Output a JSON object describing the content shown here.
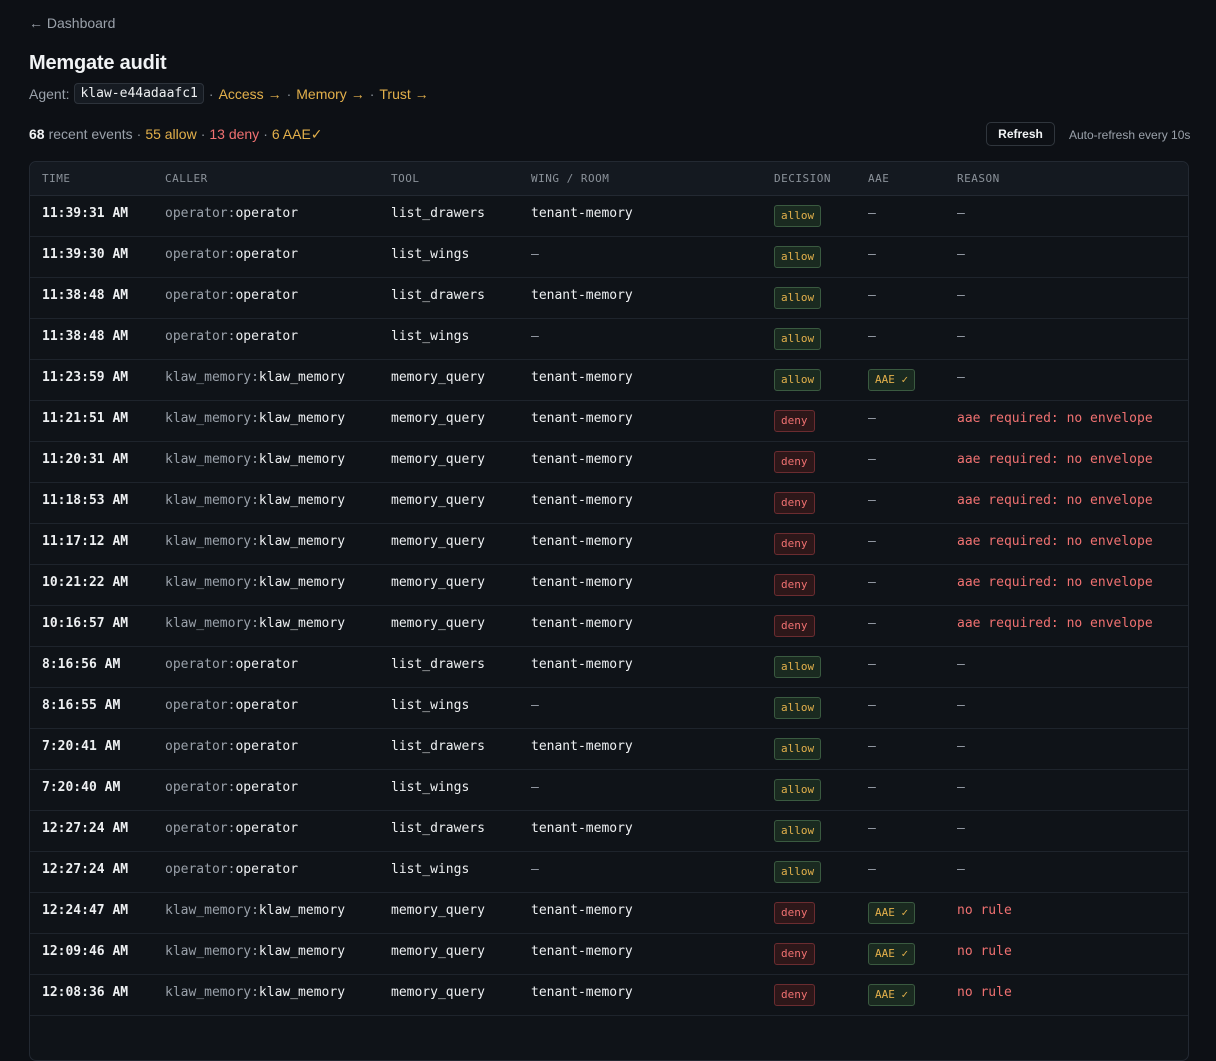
{
  "nav": {
    "back": "← Dashboard"
  },
  "header": {
    "title": "Memgate audit",
    "agent_label": "Agent:",
    "agent_id": "klaw-e44adaafc1",
    "separator": "·",
    "links": [
      "Access →",
      "Memory →",
      "Trust →"
    ]
  },
  "summary": {
    "count": 68,
    "count_text": "recent events",
    "allow": "55 allow",
    "deny": "13 deny",
    "aae": "6 AAE✓"
  },
  "controls": {
    "refresh": "Refresh",
    "auto_refresh": "Auto-refresh every 10s"
  },
  "table": {
    "columns": [
      "TIME",
      "CALLER",
      "TOOL",
      "WING / ROOM",
      "DECISION",
      "AAE",
      "REASON"
    ],
    "rows": [
      {
        "time": "11:39:31 AM",
        "caller_prefix": "operator:",
        "caller": "operator",
        "tool": "list_drawers",
        "wing": "tenant-memory",
        "decision": "allow",
        "aae": "—",
        "reason": "—"
      },
      {
        "time": "11:39:30 AM",
        "caller_prefix": "operator:",
        "caller": "operator",
        "tool": "list_wings",
        "wing": "—",
        "decision": "allow",
        "aae": "—",
        "reason": "—"
      },
      {
        "time": "11:38:48 AM",
        "caller_prefix": "operator:",
        "caller": "operator",
        "tool": "list_drawers",
        "wing": "tenant-memory",
        "decision": "allow",
        "aae": "—",
        "reason": "—"
      },
      {
        "time": "11:38:48 AM",
        "caller_prefix": "operator:",
        "caller": "operator",
        "tool": "list_wings",
        "wing": "—",
        "decision": "allow",
        "aae": "—",
        "reason": "—"
      },
      {
        "time": "11:23:59 AM",
        "caller_prefix": "klaw_memory:",
        "caller": "klaw_memory",
        "tool": "memory_query",
        "wing": "tenant-memory",
        "decision": "allow",
        "aae": "AAE ✓",
        "reason": "—"
      },
      {
        "time": "11:21:51 AM",
        "caller_prefix": "klaw_memory:",
        "caller": "klaw_memory",
        "tool": "memory_query",
        "wing": "tenant-memory",
        "decision": "deny",
        "aae": "—",
        "reason": "aae required: no envelope"
      },
      {
        "time": "11:20:31 AM",
        "caller_prefix": "klaw_memory:",
        "caller": "klaw_memory",
        "tool": "memory_query",
        "wing": "tenant-memory",
        "decision": "deny",
        "aae": "—",
        "reason": "aae required: no envelope"
      },
      {
        "time": "11:18:53 AM",
        "caller_prefix": "klaw_memory:",
        "caller": "klaw_memory",
        "tool": "memory_query",
        "wing": "tenant-memory",
        "decision": "deny",
        "aae": "—",
        "reason": "aae required: no envelope"
      },
      {
        "time": "11:17:12 AM",
        "caller_prefix": "klaw_memory:",
        "caller": "klaw_memory",
        "tool": "memory_query",
        "wing": "tenant-memory",
        "decision": "deny",
        "aae": "—",
        "reason": "aae required: no envelope"
      },
      {
        "time": "10:21:22 AM",
        "caller_prefix": "klaw_memory:",
        "caller": "klaw_memory",
        "tool": "memory_query",
        "wing": "tenant-memory",
        "decision": "deny",
        "aae": "—",
        "reason": "aae required: no envelope"
      },
      {
        "time": "10:16:57 AM",
        "caller_prefix": "klaw_memory:",
        "caller": "klaw_memory",
        "tool": "memory_query",
        "wing": "tenant-memory",
        "decision": "deny",
        "aae": "—",
        "reason": "aae required: no envelope"
      },
      {
        "time": "8:16:56 AM",
        "caller_prefix": "operator:",
        "caller": "operator",
        "tool": "list_drawers",
        "wing": "tenant-memory",
        "decision": "allow",
        "aae": "—",
        "reason": "—"
      },
      {
        "time": "8:16:55 AM",
        "caller_prefix": "operator:",
        "caller": "operator",
        "tool": "list_wings",
        "wing": "—",
        "decision": "allow",
        "aae": "—",
        "reason": "—"
      },
      {
        "time": "7:20:41 AM",
        "caller_prefix": "operator:",
        "caller": "operator",
        "tool": "list_drawers",
        "wing": "tenant-memory",
        "decision": "allow",
        "aae": "—",
        "reason": "—"
      },
      {
        "time": "7:20:40 AM",
        "caller_prefix": "operator:",
        "caller": "operator",
        "tool": "list_wings",
        "wing": "—",
        "decision": "allow",
        "aae": "—",
        "reason": "—"
      },
      {
        "time": "12:27:24 AM",
        "caller_prefix": "operator:",
        "caller": "operator",
        "tool": "list_drawers",
        "wing": "tenant-memory",
        "decision": "allow",
        "aae": "—",
        "reason": "—"
      },
      {
        "time": "12:27:24 AM",
        "caller_prefix": "operator:",
        "caller": "operator",
        "tool": "list_wings",
        "wing": "—",
        "decision": "allow",
        "aae": "—",
        "reason": "—"
      },
      {
        "time": "12:24:47 AM",
        "caller_prefix": "klaw_memory:",
        "caller": "klaw_memory",
        "tool": "memory_query",
        "wing": "tenant-memory",
        "decision": "deny",
        "aae": "AAE ✓",
        "reason": "no rule"
      },
      {
        "time": "12:09:46 AM",
        "caller_prefix": "klaw_memory:",
        "caller": "klaw_memory",
        "tool": "memory_query",
        "wing": "tenant-memory",
        "decision": "deny",
        "aae": "AAE ✓",
        "reason": "no rule"
      },
      {
        "time": "12:08:36 AM",
        "caller_prefix": "klaw_memory:",
        "caller": "klaw_memory",
        "tool": "memory_query",
        "wing": "tenant-memory",
        "decision": "deny",
        "aae": "AAE ✓",
        "reason": "no rule"
      }
    ]
  }
}
